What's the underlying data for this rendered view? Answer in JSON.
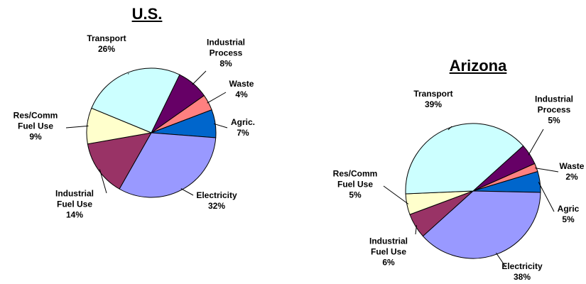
{
  "chart_data": [
    {
      "type": "pie",
      "title": "U.S.",
      "categories": [
        "Industrial Process",
        "Waste",
        "Agric.",
        "Electricity",
        "Industrial Fuel Use",
        "Res/Comm Fuel Use",
        "Transport"
      ],
      "values": [
        8,
        4,
        7,
        32,
        14,
        9,
        26
      ],
      "value_labels": [
        "8%",
        "4%",
        "7%",
        "32%",
        "14%",
        "9%",
        "26%"
      ],
      "colors": [
        "#660066",
        "#ff8080",
        "#0066cc",
        "#9999ff",
        "#993366",
        "#ffffcc",
        "#ccffff"
      ]
    },
    {
      "type": "pie",
      "title": "Arizona",
      "categories": [
        "Industrial Process",
        "Waste",
        "Agric",
        "Electricity",
        "Industrial Fuel Use",
        "Res/Comm Fuel Use",
        "Transport"
      ],
      "values": [
        5,
        2,
        5,
        38,
        6,
        5,
        39
      ],
      "value_labels": [
        "5%",
        "2%",
        "5%",
        "38%",
        "6%",
        "5%",
        "39%"
      ],
      "colors": [
        "#660066",
        "#ff8080",
        "#0066cc",
        "#9999ff",
        "#993366",
        "#ffffcc",
        "#ccffff"
      ]
    }
  ]
}
